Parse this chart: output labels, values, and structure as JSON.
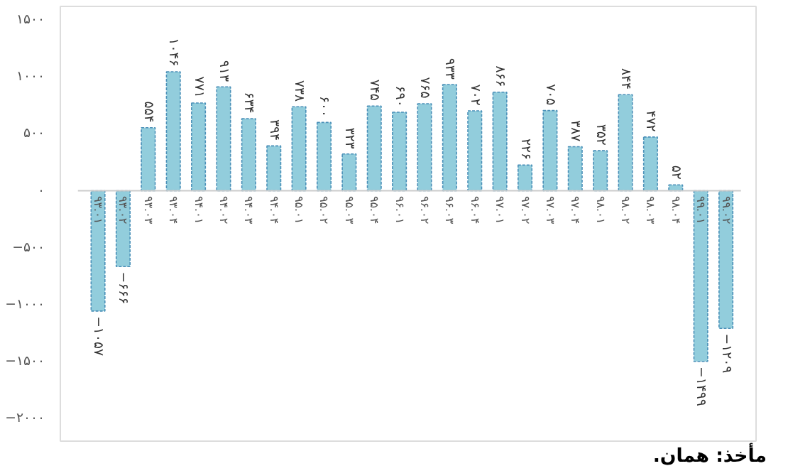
{
  "chart_data": {
    "type": "bar",
    "categories": [
      "۹۳.۰۱",
      "۹۳.۰۲",
      "۹۳.۰۳",
      "۹۳.۰۴",
      "۹۴.۰۱",
      "۹۴.۰۲",
      "۹۴.۰۳",
      "۹۴.۰۴",
      "۹۵.۰۱",
      "۹۵.۰۲",
      "۹۵.۰۳",
      "۹۵.۰۴",
      "۹۶.۰۱",
      "۹۶.۰۲",
      "۹۶.۰۳",
      "۹۶.۰۴",
      "۹۷.۰۱",
      "۹۷.۰۲",
      "۹۷.۰۳",
      "۹۷.۰۴",
      "۹۸.۰۱",
      "۹۸.۰۲",
      "۹۸.۰۳",
      "۹۸.۰۴",
      "۹۹.۰۱",
      "۹۹.۰۲"
    ],
    "values": [
      -1057,
      -666,
      554,
      1046,
      771,
      913,
      634,
      394,
      738,
      600,
      323,
      745,
      690,
      765,
      933,
      702,
      866,
      226,
      705,
      387,
      352,
      844,
      472,
      52,
      -1499,
      -1209
    ],
    "value_labels": [
      "−۱۰۵۷",
      "−۶۶۶",
      "۵۵۴",
      "۱۰۴۶",
      "۷۷۱",
      "۹۱۳",
      "۶۳۴",
      "۳۹۴",
      "۷۳۸",
      "۶۰۰",
      "۳۲۳",
      "۷۴۵",
      "۶۹۰",
      "۷۶۵",
      "۹۳۳",
      "۷۰۲",
      "۸۶۶",
      "۲۲۶",
      "۷۰۵",
      "۳۸۷",
      "۳۵۲",
      "۸۴۴",
      "۴۷۲",
      "۵۲",
      "−۱۴۹۹",
      "−۱۲۰۹"
    ],
    "color": "#92cddc",
    "ylim": [
      -2200,
      1620
    ],
    "yticks": [
      {
        "value": -2000,
        "label": "−۲۰۰۰"
      },
      {
        "value": -1500,
        "label": "−۱۵۰۰"
      },
      {
        "value": -1000,
        "label": "−۱۰۰۰"
      },
      {
        "value": -500,
        "label": "−۵۰۰"
      },
      {
        "value": 0,
        "label": "۰"
      },
      {
        "value": 500,
        "label": "۵۰۰"
      },
      {
        "value": 1000,
        "label": "۱۰۰۰"
      },
      {
        "value": 1500,
        "label": "۱۵۰۰"
      }
    ],
    "grid": false,
    "annotations": [
      "مأخذ: همان."
    ]
  }
}
